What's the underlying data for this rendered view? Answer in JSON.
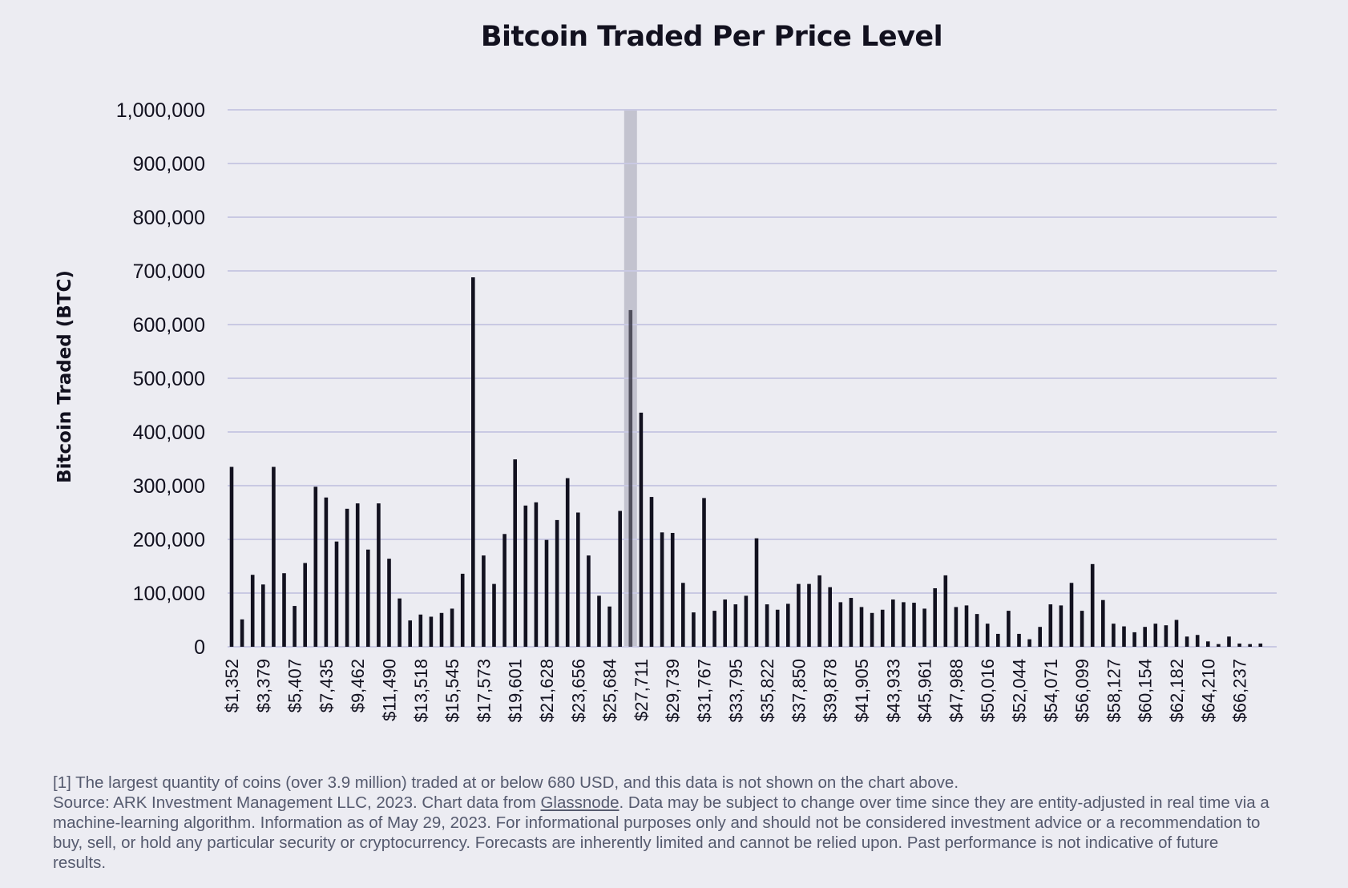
{
  "chart_data": {
    "type": "bar",
    "title": "Bitcoin Traded Per Price Level",
    "xlabel": "",
    "ylabel": "Bitcoin Traded (BTC)",
    "ylim": [
      0,
      1000000
    ],
    "yticks": [
      "0",
      "100,000",
      "200,000",
      "300,000",
      "400,000",
      "500,000",
      "600,000",
      "700,000",
      "800,000",
      "900,000",
      "1,000,000"
    ],
    "grid": true,
    "tick_every_n_bars": 3,
    "xtick_labels": [
      "$1,352",
      "$3,379",
      "$5,407",
      "$7,435",
      "$9,462",
      "$11,490",
      "$13,518",
      "$15,545",
      "$17,573",
      "$19,601",
      "$21,628",
      "$23,656",
      "$25,684",
      "$27,711",
      "$29,739",
      "$31,767",
      "$33,795",
      "$35,822",
      "$37,850",
      "$39,878",
      "$41,905",
      "$43,933",
      "$45,961",
      "$47,988",
      "$50,016",
      "$52,044",
      "$54,071",
      "$56,099",
      "$58,127",
      "$60,154",
      "$62,182",
      "$64,210",
      "$66,237"
    ],
    "values": [
      335000,
      51000,
      134000,
      116000,
      335000,
      137000,
      76000,
      156000,
      298000,
      278000,
      196000,
      257000,
      267000,
      181000,
      267000,
      164000,
      90000,
      49000,
      60000,
      56000,
      63000,
      71000,
      136000,
      688000,
      170000,
      117000,
      210000,
      349000,
      263000,
      269000,
      199000,
      236000,
      314000,
      250000,
      170000,
      95000,
      75000,
      253000,
      627000,
      436000,
      279000,
      213000,
      212000,
      119000,
      64000,
      277000,
      67000,
      88000,
      79000,
      95000,
      202000,
      79000,
      69000,
      80000,
      117000,
      117000,
      133000,
      111000,
      83000,
      91000,
      74000,
      63000,
      69000,
      88000,
      83000,
      82000,
      71000,
      109000,
      133000,
      74000,
      77000,
      61000,
      43000,
      24000,
      67000,
      24000,
      14000,
      37000,
      79000,
      77000,
      119000,
      67000,
      154000,
      87000,
      43000,
      38000,
      27000,
      37000,
      43000,
      40000,
      50000,
      19000,
      22000,
      10000,
      5000,
      19000,
      6000,
      5000,
      6000
    ],
    "highlight_bar_index": 38,
    "colors": {
      "bar": "#12111f",
      "grid": "#c9c9e3",
      "highlight": "#c3c3cf",
      "background": "#ececf2"
    }
  },
  "footnote": {
    "note": "[1] The largest quantity of coins (over 3.9 million) traded at or below 680 USD, and this data is not shown on the chart above.",
    "source_prefix": "Source: ARK Investment Management LLC, 2023. Chart data from ",
    "source_link": "Glassnode",
    "source_rest": ". Data may be subject to change over time since they are entity-adjusted in real time via a machine-learning algorithm. Information as of May 29, 2023. For informational purposes only and should not be considered investment advice or a recommendation to buy, sell, or hold any particular security or cryptocurrency. Forecasts are inherently limited and cannot be relied upon. Past performance is not indicative of future results."
  }
}
